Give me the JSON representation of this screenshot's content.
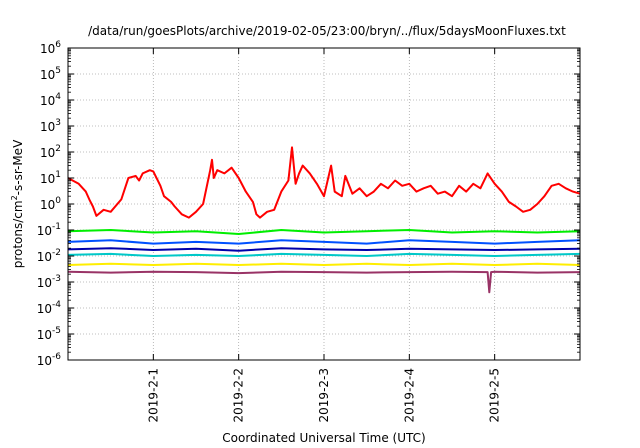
{
  "chart_data": {
    "type": "line",
    "title": "/data/run/goesPlots/archive/2019-02-05/23:00/bryn/../flux/5daysMoonFluxes.txt",
    "xlabel": "Coordinated Universal Time (UTC)",
    "ylabel": "protons/cm²-s-sr-MeV",
    "ylabel_parts": {
      "pre": "protons/cm",
      "sup": "2",
      "post": "-s-sr-MeV"
    },
    "xlim": [
      "2019-01-31T00:00",
      "2019-02-06T00:00"
    ],
    "y_scale": "log",
    "ylim": [
      1e-06,
      1000000.0
    ],
    "grid": true,
    "x_ticks": [
      {
        "value": "2019-02-01",
        "label": "2019-2-1"
      },
      {
        "value": "2019-02-02",
        "label": "2019-2-2"
      },
      {
        "value": "2019-02-03",
        "label": "2019-2-3"
      },
      {
        "value": "2019-02-04",
        "label": "2019-2-4"
      },
      {
        "value": "2019-02-05",
        "label": "2019-2-5"
      }
    ],
    "y_ticks": [
      {
        "exp": -6,
        "base": "10",
        "power": "-6"
      },
      {
        "exp": -5,
        "base": "10",
        "power": "-5"
      },
      {
        "exp": -4,
        "base": "10",
        "power": "-4"
      },
      {
        "exp": -3,
        "base": "10",
        "power": "-3"
      },
      {
        "exp": -2,
        "base": "10",
        "power": "-2"
      },
      {
        "exp": -1,
        "base": "10",
        "power": "-1"
      },
      {
        "exp": 0,
        "base": "10",
        "power": "0"
      },
      {
        "exp": 1,
        "base": "10",
        "power": "1"
      },
      {
        "exp": 2,
        "base": "10",
        "power": "2"
      },
      {
        "exp": 3,
        "base": "10",
        "power": "3"
      },
      {
        "exp": 4,
        "base": "10",
        "power": "4"
      },
      {
        "exp": 5,
        "base": "10",
        "power": "5"
      },
      {
        "exp": 6,
        "base": "10",
        "power": "6"
      }
    ],
    "series": [
      {
        "color": "#ff0000",
        "x": [
          "2019-01-31T00:00",
          "2019-01-31T03:00",
          "2019-01-31T05:00",
          "2019-01-31T06:00",
          "2019-01-31T07:00",
          "2019-01-31T08:00",
          "2019-01-31T10:00",
          "2019-01-31T12:00",
          "2019-01-31T15:00",
          "2019-01-31T17:00",
          "2019-01-31T19:00",
          "2019-01-31T20:00",
          "2019-01-31T21:00",
          "2019-01-31T23:00",
          "2019-02-01T00:00",
          "2019-02-01T02:00",
          "2019-02-01T03:00",
          "2019-02-01T05:00",
          "2019-02-01T06:00",
          "2019-02-01T08:00",
          "2019-02-01T10:00",
          "2019-02-01T12:00",
          "2019-02-01T14:00",
          "2019-02-01T16:00",
          "2019-02-01T16:30",
          "2019-02-01T17:00",
          "2019-02-01T18:00",
          "2019-02-01T20:00",
          "2019-02-01T22:00",
          "2019-02-02T00:00",
          "2019-02-02T02:00",
          "2019-02-02T04:00",
          "2019-02-02T05:00",
          "2019-02-02T06:00",
          "2019-02-02T08:00",
          "2019-02-02T10:00",
          "2019-02-02T12:00",
          "2019-02-02T14:00",
          "2019-02-02T15:00",
          "2019-02-02T16:00",
          "2019-02-02T17:00",
          "2019-02-02T18:00",
          "2019-02-02T20:00",
          "2019-02-02T22:00",
          "2019-02-03T00:00",
          "2019-02-03T02:00",
          "2019-02-03T03:00",
          "2019-02-03T05:00",
          "2019-02-03T06:00",
          "2019-02-03T08:00",
          "2019-02-03T10:00",
          "2019-02-03T12:00",
          "2019-02-03T14:00",
          "2019-02-03T16:00",
          "2019-02-03T18:00",
          "2019-02-03T20:00",
          "2019-02-03T22:00",
          "2019-02-04T00:00",
          "2019-02-04T02:00",
          "2019-02-04T04:00",
          "2019-02-04T06:00",
          "2019-02-04T08:00",
          "2019-02-04T10:00",
          "2019-02-04T12:00",
          "2019-02-04T14:00",
          "2019-02-04T16:00",
          "2019-02-04T18:00",
          "2019-02-04T20:00",
          "2019-02-04T22:00",
          "2019-02-05T00:00",
          "2019-02-05T02:00",
          "2019-02-05T04:00",
          "2019-02-05T06:00",
          "2019-02-05T08:00",
          "2019-02-05T10:00",
          "2019-02-05T12:00",
          "2019-02-05T14:00",
          "2019-02-05T16:00",
          "2019-02-05T18:00",
          "2019-02-05T20:00",
          "2019-02-05T22:00",
          "2019-02-06T00:00"
        ],
        "y": [
          10,
          6,
          3,
          1.5,
          0.8,
          0.35,
          0.6,
          0.5,
          1.5,
          10,
          12,
          8,
          15,
          20,
          18,
          5,
          2,
          1.2,
          0.8,
          0.4,
          0.3,
          0.5,
          1,
          20,
          50,
          10,
          20,
          15,
          25,
          10,
          3,
          1.2,
          0.4,
          0.3,
          0.5,
          0.6,
          3,
          8,
          150,
          6,
          15,
          30,
          15,
          6,
          2,
          30,
          3,
          2,
          12,
          2.5,
          4,
          2,
          3,
          6,
          4,
          8,
          5,
          6,
          3,
          4,
          5,
          2.5,
          3,
          2,
          5,
          3,
          6,
          4,
          15,
          6,
          3,
          1.2,
          0.8,
          0.5,
          0.6,
          1,
          2,
          5,
          6,
          4,
          3,
          2.5
        ]
      },
      {
        "color": "#00ee00",
        "x": [
          "2019-01-31T00:00",
          "2019-01-31T12:00",
          "2019-02-01T00:00",
          "2019-02-01T12:00",
          "2019-02-02T00:00",
          "2019-02-02T12:00",
          "2019-02-03T00:00",
          "2019-02-03T12:00",
          "2019-02-04T00:00",
          "2019-02-04T12:00",
          "2019-02-05T00:00",
          "2019-02-05T12:00",
          "2019-02-06T00:00"
        ],
        "y": [
          0.09,
          0.1,
          0.08,
          0.09,
          0.07,
          0.1,
          0.08,
          0.09,
          0.1,
          0.08,
          0.09,
          0.08,
          0.09
        ]
      },
      {
        "color": "#0050ff",
        "x": [
          "2019-01-31T00:00",
          "2019-01-31T12:00",
          "2019-02-01T00:00",
          "2019-02-01T12:00",
          "2019-02-02T00:00",
          "2019-02-02T12:00",
          "2019-02-03T00:00",
          "2019-02-03T12:00",
          "2019-02-04T00:00",
          "2019-02-04T12:00",
          "2019-02-05T00:00",
          "2019-02-05T12:00",
          "2019-02-06T00:00"
        ],
        "y": [
          0.035,
          0.04,
          0.03,
          0.035,
          0.03,
          0.04,
          0.035,
          0.03,
          0.04,
          0.035,
          0.03,
          0.035,
          0.04
        ]
      },
      {
        "color": "#0000aa",
        "x": [
          "2019-01-31T00:00",
          "2019-01-31T12:00",
          "2019-02-01T00:00",
          "2019-02-01T12:00",
          "2019-02-02T00:00",
          "2019-02-02T12:00",
          "2019-02-03T00:00",
          "2019-02-03T12:00",
          "2019-02-04T00:00",
          "2019-02-04T12:00",
          "2019-02-05T00:00",
          "2019-02-05T12:00",
          "2019-02-06T00:00"
        ],
        "y": [
          0.018,
          0.02,
          0.017,
          0.019,
          0.016,
          0.02,
          0.018,
          0.017,
          0.019,
          0.018,
          0.017,
          0.018,
          0.019
        ]
      },
      {
        "color": "#00c8c8",
        "x": [
          "2019-01-31T00:00",
          "2019-01-31T12:00",
          "2019-02-01T00:00",
          "2019-02-01T12:00",
          "2019-02-02T00:00",
          "2019-02-02T12:00",
          "2019-02-03T00:00",
          "2019-02-03T12:00",
          "2019-02-04T00:00",
          "2019-02-04T12:00",
          "2019-02-05T00:00",
          "2019-02-05T12:00",
          "2019-02-06T00:00"
        ],
        "y": [
          0.011,
          0.012,
          0.01,
          0.011,
          0.01,
          0.012,
          0.011,
          0.01,
          0.012,
          0.011,
          0.01,
          0.011,
          0.012
        ]
      },
      {
        "color": "#ffee00",
        "x": [
          "2019-01-31T00:00",
          "2019-01-31T12:00",
          "2019-02-01T00:00",
          "2019-02-01T12:00",
          "2019-02-02T00:00",
          "2019-02-02T12:00",
          "2019-02-03T00:00",
          "2019-02-03T12:00",
          "2019-02-04T00:00",
          "2019-02-04T12:00",
          "2019-02-05T00:00",
          "2019-02-05T12:00",
          "2019-02-06T00:00"
        ],
        "y": [
          0.0045,
          0.005,
          0.0045,
          0.005,
          0.0045,
          0.005,
          0.0045,
          0.005,
          0.0045,
          0.005,
          0.0045,
          0.005,
          0.0045
        ]
      },
      {
        "color": "#993366",
        "x": [
          "2019-01-31T00:00",
          "2019-01-31T12:00",
          "2019-02-01T00:00",
          "2019-02-01T12:00",
          "2019-02-02T00:00",
          "2019-02-02T12:00",
          "2019-02-03T00:00",
          "2019-02-03T12:00",
          "2019-02-04T00:00",
          "2019-02-04T12:00",
          "2019-02-04T22:00",
          "2019-02-04T22:30",
          "2019-02-04T23:00",
          "2019-02-05T00:00",
          "2019-02-05T12:00",
          "2019-02-06T00:00"
        ],
        "y": [
          0.0025,
          0.0023,
          0.0025,
          0.0024,
          0.0022,
          0.0025,
          0.0024,
          0.0023,
          0.0024,
          0.0025,
          0.0024,
          0.0004,
          0.0024,
          0.0025,
          0.0023,
          0.0024
        ]
      }
    ]
  }
}
